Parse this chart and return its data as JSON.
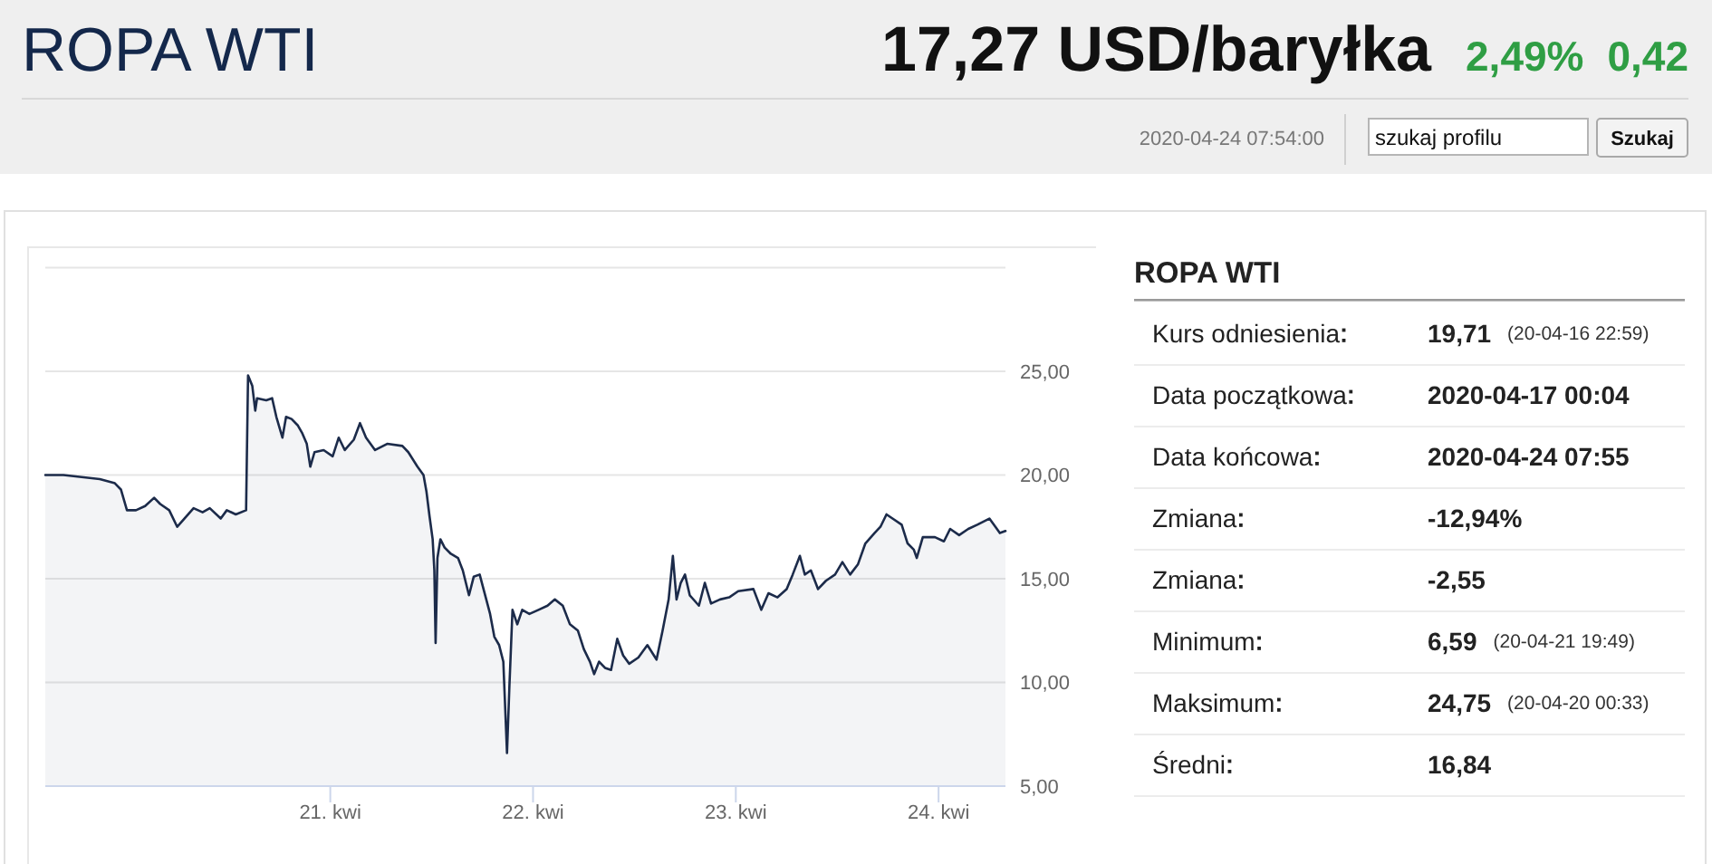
{
  "chart_data": [
    {
      "type": "other",
      "title": "ROPA WTI",
      "subtitle": "17,27 USD/baryłka",
      "annotations": [
        "2,49%",
        "0,42",
        "2020-04-24 07:54:00",
        "szukaj profilu",
        "Szukaj"
      ]
    },
    {
      "type": "area",
      "color": "#1c2b4a",
      "grid": "y",
      "xlim": [
        "2020-04-19T14:16",
        "2020-04-24T07:55"
      ],
      "xticks": [
        {
          "value": "2020-04-21",
          "label": "21. kwi"
        },
        {
          "value": "2020-04-22",
          "label": "22. kwi"
        },
        {
          "value": "2020-04-23",
          "label": "23. kwi"
        },
        {
          "value": "2020-04-24",
          "label": "24. kwi"
        }
      ],
      "ylim": [
        5,
        30
      ],
      "yticks": [
        {
          "value": 5,
          "label": "5,00"
        },
        {
          "value": 10,
          "label": "10,00"
        },
        {
          "value": 15,
          "label": "15,00"
        },
        {
          "value": 20,
          "label": "20,00"
        },
        {
          "value": 25,
          "label": "25,00"
        },
        {
          "value": 30,
          "label": null
        }
      ],
      "x": [
        "2020-04-19T14:16",
        "2020-04-19T16:25",
        "2020-04-19T18:34",
        "2020-04-19T20:43",
        "2020-04-19T22:30",
        "2020-04-19T23:13",
        "2020-04-19T23:56",
        "2020-04-20T01:00",
        "2020-04-20T02:05",
        "2020-04-20T03:09",
        "2020-04-20T03:52",
        "2020-04-20T04:56",
        "2020-04-20T05:53",
        "2020-04-20T06:44",
        "2020-04-20T07:49",
        "2020-04-20T08:53",
        "2020-04-20T09:44",
        "2020-04-20T11:02",
        "2020-04-20T11:45",
        "2020-04-20T12:49",
        "2020-04-20T14:02",
        "2020-04-20T14:16",
        "2020-04-20T14:46",
        "2020-04-20T15:07",
        "2020-04-20T15:20",
        "2020-04-20T16:25",
        "2020-04-20T17:07",
        "2020-04-20T17:37",
        "2020-04-20T18:20",
        "2020-04-20T18:46",
        "2020-04-20T19:25",
        "2020-04-20T20:08",
        "2020-04-20T20:42",
        "2020-04-20T21:13",
        "2020-04-20T21:38",
        "2020-04-20T22:08",
        "2020-04-20T23:13",
        "2020-04-21T00:17",
        "2020-04-21T01:00",
        "2020-04-21T01:43",
        "2020-04-21T02:47",
        "2020-04-21T03:31",
        "2020-04-21T04:14",
        "2020-04-21T05:18",
        "2020-04-21T06:44",
        "2020-04-21T08:32",
        "2020-04-21T09:14",
        "2020-04-21T10:19",
        "2020-04-21T11:02",
        "2020-04-21T11:23",
        "2020-04-21T11:45",
        "2020-04-21T12:07",
        "2020-04-21T12:19",
        "2020-04-21T12:28",
        "2020-04-21T12:41",
        "2020-04-21T13:02",
        "2020-04-21T13:32",
        "2020-04-21T14:16",
        "2020-04-21T15:07",
        "2020-04-21T15:41",
        "2020-04-21T16:25",
        "2020-04-21T16:59",
        "2020-04-21T17:41",
        "2020-04-21T18:12",
        "2020-04-21T18:55",
        "2020-04-21T19:25",
        "2020-04-21T19:59",
        "2020-04-21T20:29",
        "2020-04-21T20:55",
        "2020-04-21T21:12",
        "2020-04-21T21:34",
        "2020-04-21T22:08",
        "2020-04-21T22:43",
        "2020-04-21T23:34",
        "2020-04-22T00:39",
        "2020-04-22T01:43",
        "2020-04-22T02:35",
        "2020-04-22T03:31",
        "2020-04-22T04:22",
        "2020-04-22T05:18",
        "2020-04-22T06:01",
        "2020-04-22T06:44",
        "2020-04-22T07:14",
        "2020-04-22T07:49",
        "2020-04-22T08:31",
        "2020-04-22T09:14",
        "2020-04-22T09:58",
        "2020-04-22T10:40",
        "2020-04-22T11:23",
        "2020-04-22T12:28",
        "2020-04-22T13:32",
        "2020-04-22T14:37",
        "2020-04-22T15:20",
        "2020-04-22T16:03",
        "2020-04-22T16:33",
        "2020-04-22T16:59",
        "2020-04-22T17:29",
        "2020-04-22T17:59",
        "2020-04-22T18:33",
        "2020-04-22T19:38",
        "2020-04-22T20:20",
        "2020-04-22T21:04",
        "2020-04-22T22:08",
        "2020-04-22T23:13",
        "2020-04-23T00:17",
        "2020-04-23T02:05",
        "2020-04-23T03:01",
        "2020-04-23T03:52",
        "2020-04-23T04:56",
        "2020-04-23T06:01",
        "2020-04-23T06:44",
        "2020-04-23T07:35",
        "2020-04-23T08:10",
        "2020-04-23T08:53",
        "2020-04-23T09:44",
        "2020-04-23T10:40",
        "2020-04-23T11:45",
        "2020-04-23T12:37",
        "2020-04-23T13:32",
        "2020-04-23T14:28",
        "2020-04-23T15:20",
        "2020-04-23T16:25",
        "2020-04-23T17:07",
        "2020-04-23T17:50",
        "2020-04-23T18:33",
        "2020-04-23T19:38",
        "2020-04-23T20:20",
        "2020-04-23T21:04",
        "2020-04-23T21:25",
        "2020-04-23T22:08",
        "2020-04-23T23:34",
        "2020-04-24T00:38",
        "2020-04-24T01:22",
        "2020-04-24T02:26",
        "2020-04-24T03:31",
        "2020-04-24T04:35",
        "2020-04-24T06:01",
        "2020-04-24T06:44",
        "2020-04-24T07:15",
        "2020-04-24T07:55"
      ],
      "values": [
        20,
        20,
        19.9,
        19.8,
        19.6,
        19.3,
        18.3,
        18.3,
        18.5,
        18.9,
        18.6,
        18.3,
        17.5,
        17.9,
        18.4,
        18.2,
        18.4,
        17.9,
        18.3,
        18.1,
        18.3,
        24.8,
        24.3,
        23.1,
        23.7,
        23.6,
        23.7,
        22.8,
        21.8,
        22.8,
        22.7,
        22.4,
        22,
        21.5,
        20.4,
        21.1,
        21.2,
        20.9,
        21.8,
        21.2,
        21.7,
        22.5,
        21.8,
        21.2,
        21.5,
        21.4,
        21.1,
        20.4,
        20,
        19.2,
        18,
        16.9,
        15.4,
        11.9,
        16,
        16.9,
        16.5,
        16.2,
        16,
        15.4,
        14.2,
        15.1,
        15.2,
        14.4,
        13.3,
        12.2,
        11.8,
        11,
        6.6,
        9.8,
        13.5,
        12.8,
        13.5,
        13.3,
        13.5,
        13.7,
        14,
        13.7,
        12.8,
        12.5,
        11.6,
        11,
        10.4,
        11,
        10.7,
        10.6,
        12.1,
        11.3,
        10.9,
        11.2,
        11.8,
        11.1,
        12.5,
        14,
        16.1,
        14,
        14.8,
        15.2,
        14.2,
        13.7,
        14.8,
        13.8,
        14,
        14.1,
        14.4,
        14.5,
        13.5,
        14.3,
        14.1,
        14.5,
        15.2,
        16.1,
        15.2,
        15.4,
        14.5,
        14.9,
        15.2,
        15.8,
        15.2,
        15.7,
        16.7,
        17.2,
        17.5,
        18.1,
        17.9,
        17.6,
        16.7,
        16.4,
        16,
        17,
        17,
        16.8,
        17.4,
        17.1,
        17.4,
        17.6,
        17.9,
        17.5,
        17.2,
        17.3
      ]
    },
    {
      "type": "other",
      "title": "ROPA WTI",
      "categories": [
        "Kurs odniesienia",
        "Data początkowa",
        "Data końcowa",
        "Zmiana",
        "Zmiana",
        "Minimum",
        "Maksimum",
        "Średni"
      ],
      "value_labels": [
        "19,71",
        "2020-04-17 00:04",
        "2020-04-24 07:55",
        "-12,94%",
        "-2,55",
        "6,59",
        "24,75",
        "16,84"
      ],
      "y2_categories": [
        "(20-04-16 22:59)",
        null,
        null,
        null,
        null,
        "(20-04-21 19:49)",
        "(20-04-20 00:33)",
        null
      ]
    }
  ]
}
